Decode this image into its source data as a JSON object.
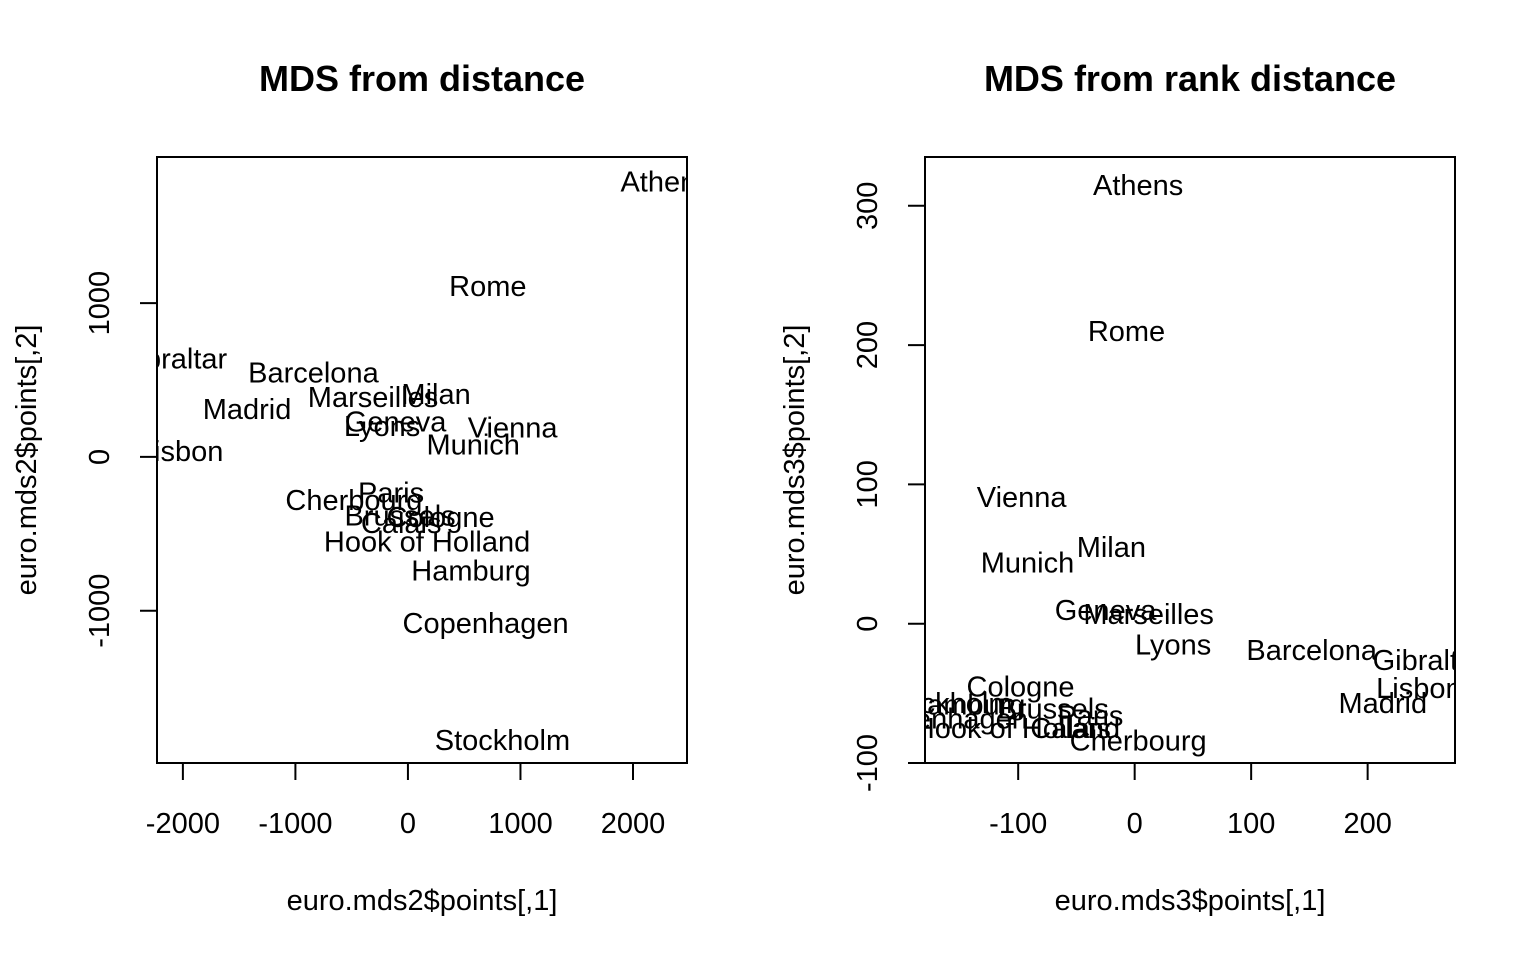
{
  "chart_data": [
    {
      "type": "scatter",
      "title": "MDS from distance",
      "xlabel": "euro.mds2$points[,1]",
      "ylabel": "euro.mds2$points[,2]",
      "xlim": [
        -2230,
        2480
      ],
      "ylim": [
        -1990,
        1950
      ],
      "xticks": [
        -2000,
        -1000,
        0,
        1000,
        2000
      ],
      "yticks": [
        -1000,
        0,
        1000
      ],
      "points": [
        {
          "label": "Athens",
          "x": 2290,
          "y": 1790
        },
        {
          "label": "Rome",
          "x": 710,
          "y": 1110
        },
        {
          "label": "Gibraltar",
          "x": -2100,
          "y": 640
        },
        {
          "label": "Barcelona",
          "x": -840,
          "y": 550
        },
        {
          "label": "Madrid",
          "x": -1430,
          "y": 310
        },
        {
          "label": "Marseilles",
          "x": -310,
          "y": 390
        },
        {
          "label": "Milan",
          "x": 250,
          "y": 410
        },
        {
          "label": "Geneva",
          "x": -110,
          "y": 230
        },
        {
          "label": "Lyons",
          "x": -230,
          "y": 200
        },
        {
          "label": "Vienna",
          "x": 930,
          "y": 190
        },
        {
          "label": "Munich",
          "x": 580,
          "y": 80
        },
        {
          "label": "Lisbon",
          "x": -2020,
          "y": 40
        },
        {
          "label": "Paris",
          "x": -150,
          "y": -230
        },
        {
          "label": "Cherbourg",
          "x": -480,
          "y": -280
        },
        {
          "label": "Brussels",
          "x": -70,
          "y": -380
        },
        {
          "label": "Cologne",
          "x": 290,
          "y": -390
        },
        {
          "label": "Calais",
          "x": -60,
          "y": -430
        },
        {
          "label": "Hook of Holland",
          "x": 170,
          "y": -550
        },
        {
          "label": "Hamburg",
          "x": 560,
          "y": -740
        },
        {
          "label": "Copenhagen",
          "x": 690,
          "y": -1080
        },
        {
          "label": "Stockholm",
          "x": 840,
          "y": -1840
        }
      ]
    },
    {
      "type": "scatter",
      "title": "MDS from rank distance",
      "xlabel": "euro.mds3$points[,1]",
      "ylabel": "euro.mds3$points[,2]",
      "xlim": [
        -180,
        275
      ],
      "ylim": [
        -100,
        335
      ],
      "xticks": [
        -100,
        0,
        100,
        200
      ],
      "yticks": [
        -100,
        0,
        100,
        200,
        300
      ],
      "points": [
        {
          "label": "Athens",
          "x": 3,
          "y": 315
        },
        {
          "label": "Rome",
          "x": -7,
          "y": 210
        },
        {
          "label": "Vienna",
          "x": -97,
          "y": 91
        },
        {
          "label": "Milan",
          "x": -20,
          "y": 55
        },
        {
          "label": "Munich",
          "x": -92,
          "y": 44
        },
        {
          "label": "Geneva",
          "x": -25,
          "y": 10
        },
        {
          "label": "Marseilles",
          "x": 12,
          "y": 7
        },
        {
          "label": "Lyons",
          "x": 33,
          "y": -15
        },
        {
          "label": "Barcelona",
          "x": 152,
          "y": -19
        },
        {
          "label": "Gibraltar",
          "x": 252,
          "y": -26
        },
        {
          "label": "Lisbon",
          "x": 244,
          "y": -46
        },
        {
          "label": "Madrid",
          "x": 213,
          "y": -57
        },
        {
          "label": "Cologne",
          "x": -98,
          "y": -45
        },
        {
          "label": "Stockholm",
          "x": -163,
          "y": -57
        },
        {
          "label": "Hamburg",
          "x": -145,
          "y": -58
        },
        {
          "label": "Brussels",
          "x": -70,
          "y": -61
        },
        {
          "label": "Paris",
          "x": -38,
          "y": -66
        },
        {
          "label": "Copenhagen",
          "x": -163,
          "y": -68
        },
        {
          "label": "Hook of Holland",
          "x": -101,
          "y": -75
        },
        {
          "label": "Calais",
          "x": -55,
          "y": -75
        },
        {
          "label": "Cherbourg",
          "x": 3,
          "y": -84
        }
      ]
    }
  ]
}
